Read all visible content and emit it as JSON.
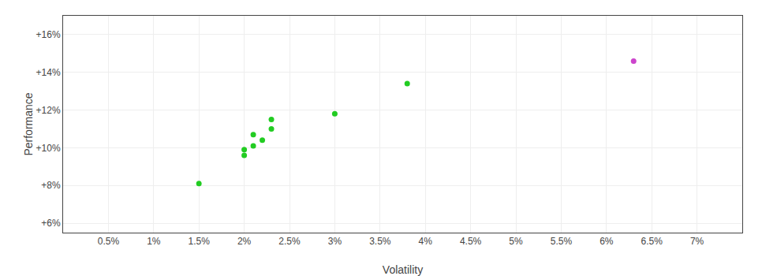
{
  "chart_data": {
    "type": "scatter",
    "xlabel": "Volatility",
    "ylabel": "Performance",
    "series": [
      {
        "color": "#22cc22",
        "x": [
          0.015,
          0.02,
          0.021,
          0.021,
          0.022,
          0.023,
          0.023,
          0.02,
          0.03,
          0.038
        ],
        "values": [
          0.081,
          0.096,
          0.101,
          0.107,
          0.104,
          0.11,
          0.115,
          0.099,
          0.118,
          0.134
        ]
      },
      {
        "color": "#cc44cc",
        "x": [
          0.063
        ],
        "values": [
          0.146
        ]
      }
    ],
    "xlim": [
      0.0,
      0.075
    ],
    "ylim": [
      0.055,
      0.17
    ],
    "xticks": [
      {
        "value": 0.005,
        "label": "0.5%"
      },
      {
        "value": 0.01,
        "label": "1%"
      },
      {
        "value": 0.015,
        "label": "1.5%"
      },
      {
        "value": 0.02,
        "label": "2%"
      },
      {
        "value": 0.025,
        "label": "2.5%"
      },
      {
        "value": 0.03,
        "label": "3%"
      },
      {
        "value": 0.035,
        "label": "3.5%"
      },
      {
        "value": 0.04,
        "label": "4%"
      },
      {
        "value": 0.045,
        "label": "4.5%"
      },
      {
        "value": 0.05,
        "label": "5%"
      },
      {
        "value": 0.055,
        "label": "5.5%"
      },
      {
        "value": 0.06,
        "label": "6%"
      },
      {
        "value": 0.065,
        "label": "6.5%"
      },
      {
        "value": 0.07,
        "label": "7%"
      }
    ],
    "yticks": [
      {
        "value": 0.06,
        "label": "+6%"
      },
      {
        "value": 0.08,
        "label": "+8%"
      },
      {
        "value": 0.1,
        "label": "+10%"
      },
      {
        "value": 0.12,
        "label": "+12%"
      },
      {
        "value": 0.14,
        "label": "+14%"
      },
      {
        "value": 0.16,
        "label": "+16%"
      }
    ],
    "grid": true
  }
}
